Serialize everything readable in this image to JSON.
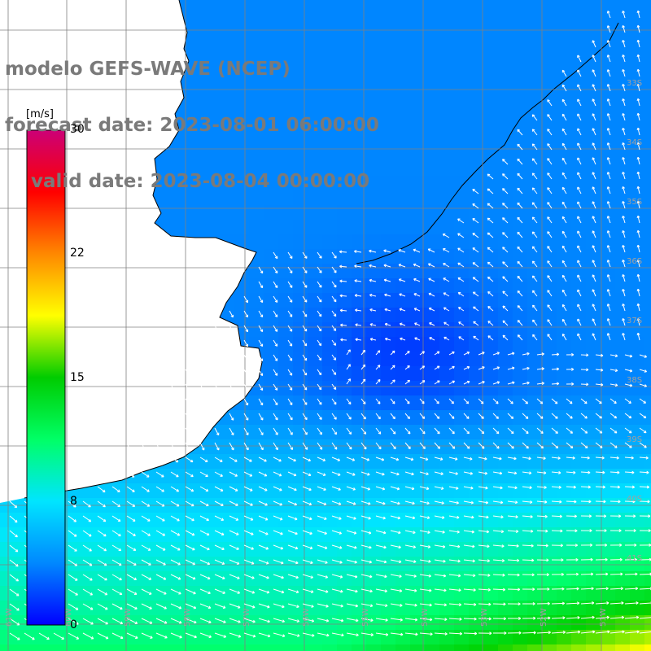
{
  "title": {
    "line1": "modelo GEFS-WAVE (NCEP)",
    "line2": "forecast date: 2023-08-01 06:00:00",
    "line3": "    valid date: 2023-08-04 00:00:00"
  },
  "colorbar": {
    "unit": "[m/s]",
    "min": 0,
    "max": 30,
    "ticks": [
      "30",
      "22",
      "15",
      "8",
      "0"
    ],
    "tick_values": [
      30,
      22,
      15,
      8,
      0
    ],
    "colors": [
      "#0000ff",
      "#0088ff",
      "#00e5ff",
      "#00ff66",
      "#00cc00",
      "#ffff00",
      "#ff8800",
      "#ff0000",
      "#cc0077"
    ]
  },
  "map": {
    "type": "wind-vector field with speed shading",
    "lat_labels": [
      "33S",
      "34S",
      "35S",
      "36S",
      "37S",
      "38S",
      "39S",
      "40S",
      "41S"
    ],
    "lon_labels": [
      "61W",
      "60W",
      "59W",
      "58W",
      "57W",
      "56W",
      "55W",
      "54W",
      "53W",
      "52W",
      "51W"
    ],
    "colors": {
      "land": "#ffffff",
      "coastline": "#000000",
      "grid": "#808080",
      "arrow": "#ffffff",
      "title": "#7a7a7a"
    }
  }
}
